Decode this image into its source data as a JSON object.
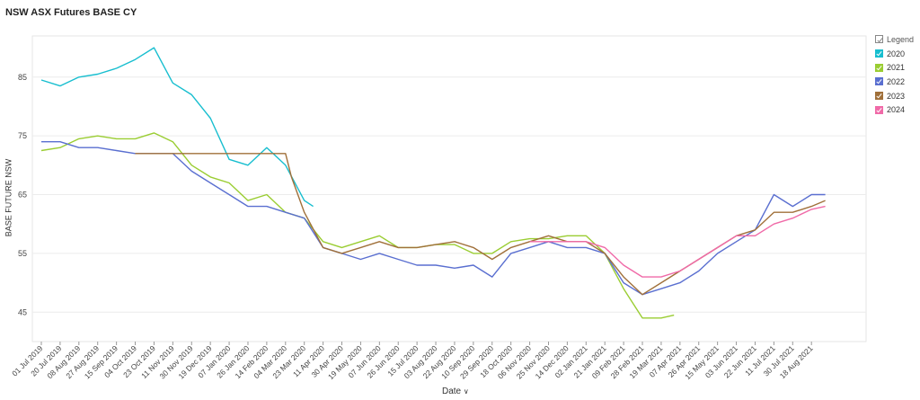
{
  "title": "NSW ASX Futures BASE CY",
  "legend": {
    "title": "Legend",
    "items": [
      {
        "label": "2020",
        "color": "#17becf"
      },
      {
        "label": "2021",
        "color": "#9acd32"
      },
      {
        "label": "2022",
        "color": "#5a6fd0"
      },
      {
        "label": "2023",
        "color": "#a0703a"
      },
      {
        "label": "2024",
        "color": "#f06aa8"
      }
    ]
  },
  "chart_data": {
    "type": "line",
    "title": "NSW ASX Futures BASE CY",
    "xlabel": "Date",
    "ylabel": "BASE FUTURE NSW",
    "ylim": [
      40,
      92
    ],
    "yticks": [
      45,
      55,
      65,
      75,
      85
    ],
    "xlim": [
      "2019-07-01",
      "2021-09-15"
    ],
    "x_ticks": [
      "01 Jul 2019",
      "20 Jul 2019",
      "08 Aug 2019",
      "27 Aug 2019",
      "15 Sep 2019",
      "04 Oct 2019",
      "23 Oct 2019",
      "11 Nov 2019",
      "30 Nov 2019",
      "19 Dec 2019",
      "07 Jan 2020",
      "26 Jan 2020",
      "14 Feb 2020",
      "04 Mar 2020",
      "23 Mar 2020",
      "11 Apr 2020",
      "30 Apr 2020",
      "19 May 2020",
      "07 Jun 2020",
      "26 Jun 2020",
      "15 Jul 2020",
      "03 Aug 2020",
      "22 Aug 2020",
      "10 Sep 2020",
      "29 Sep 2020",
      "18 Oct 2020",
      "06 Nov 2020",
      "25 Nov 2020",
      "14 Dec 2020",
      "02 Jan 2021",
      "21 Jan 2021",
      "09 Feb 2021",
      "28 Feb 2021",
      "19 Mar 2021",
      "07 Apr 2021",
      "26 Apr 2021",
      "15 May 2021",
      "03 Jun 2021",
      "22 Jun 2021",
      "11 Jul 2021",
      "30 Jul 2021",
      "18 Aug 2021"
    ],
    "grid": true,
    "legend_position": "right",
    "series": [
      {
        "name": "2020",
        "x": [
          "2019-07-01",
          "2019-07-20",
          "2019-08-08",
          "2019-08-27",
          "2019-09-15",
          "2019-10-04",
          "2019-10-23",
          "2019-11-11",
          "2019-11-30",
          "2019-12-19",
          "2020-01-07",
          "2020-01-26",
          "2020-02-14",
          "2020-03-04",
          "2020-03-23",
          "2020-04-01"
        ],
        "values": [
          84.5,
          83.5,
          85,
          85.5,
          86.5,
          88,
          90,
          84,
          82,
          78,
          71,
          70,
          73,
          70,
          64,
          63
        ]
      },
      {
        "name": "2021",
        "x": [
          "2019-07-01",
          "2019-07-20",
          "2019-08-08",
          "2019-08-27",
          "2019-09-15",
          "2019-10-04",
          "2019-10-23",
          "2019-11-11",
          "2019-11-30",
          "2019-12-19",
          "2020-01-07",
          "2020-01-26",
          "2020-02-14",
          "2020-03-04",
          "2020-03-23",
          "2020-04-11",
          "2020-04-30",
          "2020-05-19",
          "2020-06-07",
          "2020-06-26",
          "2020-07-15",
          "2020-08-03",
          "2020-08-22",
          "2020-09-10",
          "2020-09-29",
          "2020-10-18",
          "2020-11-06",
          "2020-11-25",
          "2020-12-14",
          "2021-01-02",
          "2021-01-21",
          "2021-02-09",
          "2021-02-28",
          "2021-03-19",
          "2021-04-01"
        ],
        "values": [
          72.5,
          73,
          74.5,
          75,
          74.5,
          74.5,
          75.5,
          74,
          70,
          68,
          67,
          64,
          65,
          62,
          61,
          57,
          56,
          57,
          58,
          56,
          56,
          56.5,
          56.5,
          55,
          55,
          57,
          57.5,
          57.5,
          58,
          58,
          55,
          49,
          44,
          44,
          44.5
        ]
      },
      {
        "name": "2022",
        "x": [
          "2019-07-01",
          "2019-07-20",
          "2019-08-08",
          "2019-08-27",
          "2019-09-15",
          "2019-10-04",
          "2019-10-23",
          "2019-11-11",
          "2019-11-30",
          "2019-12-19",
          "2020-01-07",
          "2020-01-26",
          "2020-02-14",
          "2020-03-04",
          "2020-03-23",
          "2020-04-11",
          "2020-04-30",
          "2020-05-19",
          "2020-06-07",
          "2020-06-26",
          "2020-07-15",
          "2020-08-03",
          "2020-08-22",
          "2020-09-10",
          "2020-09-29",
          "2020-10-18",
          "2020-11-06",
          "2020-11-25",
          "2020-12-14",
          "2021-01-02",
          "2021-01-21",
          "2021-02-09",
          "2021-02-28",
          "2021-03-19",
          "2021-04-07",
          "2021-04-26",
          "2021-05-15",
          "2021-06-03",
          "2021-06-22",
          "2021-07-11",
          "2021-07-30",
          "2021-08-18",
          "2021-09-01"
        ],
        "values": [
          74,
          74,
          73,
          73,
          72.5,
          72,
          72,
          72,
          69,
          67,
          65,
          63,
          63,
          62,
          61,
          56,
          55,
          54,
          55,
          54,
          53,
          53,
          52.5,
          53,
          51,
          55,
          56,
          57,
          56,
          56,
          55,
          50,
          48,
          49,
          50,
          52,
          55,
          57,
          59,
          65,
          63,
          65,
          65
        ]
      },
      {
        "name": "2023",
        "x": [
          "2019-10-04",
          "2019-10-23",
          "2019-11-11",
          "2019-11-30",
          "2019-12-19",
          "2020-01-07",
          "2020-01-26",
          "2020-02-14",
          "2020-03-04",
          "2020-03-10",
          "2020-03-23",
          "2020-04-11",
          "2020-04-30",
          "2020-05-19",
          "2020-06-07",
          "2020-06-26",
          "2020-07-15",
          "2020-08-03",
          "2020-08-22",
          "2020-09-10",
          "2020-09-29",
          "2020-10-18",
          "2020-11-06",
          "2020-11-25",
          "2020-12-14",
          "2021-01-02",
          "2021-01-21",
          "2021-02-09",
          "2021-02-28",
          "2021-03-19",
          "2021-04-07",
          "2021-04-26",
          "2021-05-15",
          "2021-06-03",
          "2021-06-22",
          "2021-07-11",
          "2021-07-30",
          "2021-08-18",
          "2021-09-01"
        ],
        "values": [
          72,
          72,
          72,
          72,
          72,
          72,
          72,
          72,
          72,
          68,
          62,
          56,
          55,
          56,
          57,
          56,
          56,
          56.5,
          57,
          56,
          54,
          56,
          57,
          58,
          57,
          57,
          55,
          51,
          48,
          50,
          52,
          54,
          56,
          58,
          59,
          62,
          62,
          63,
          64
        ]
      },
      {
        "name": "2024",
        "x": [
          "2020-11-06",
          "2020-11-25",
          "2020-12-14",
          "2021-01-02",
          "2021-01-21",
          "2021-02-09",
          "2021-02-28",
          "2021-03-19",
          "2021-04-07",
          "2021-04-26",
          "2021-05-15",
          "2021-06-03",
          "2021-06-22",
          "2021-07-11",
          "2021-07-30",
          "2021-08-18",
          "2021-09-01"
        ],
        "values": [
          57,
          57,
          57,
          57,
          56,
          53,
          51,
          51,
          52,
          54,
          56,
          58,
          58,
          60,
          61,
          62.5,
          63
        ]
      }
    ]
  }
}
